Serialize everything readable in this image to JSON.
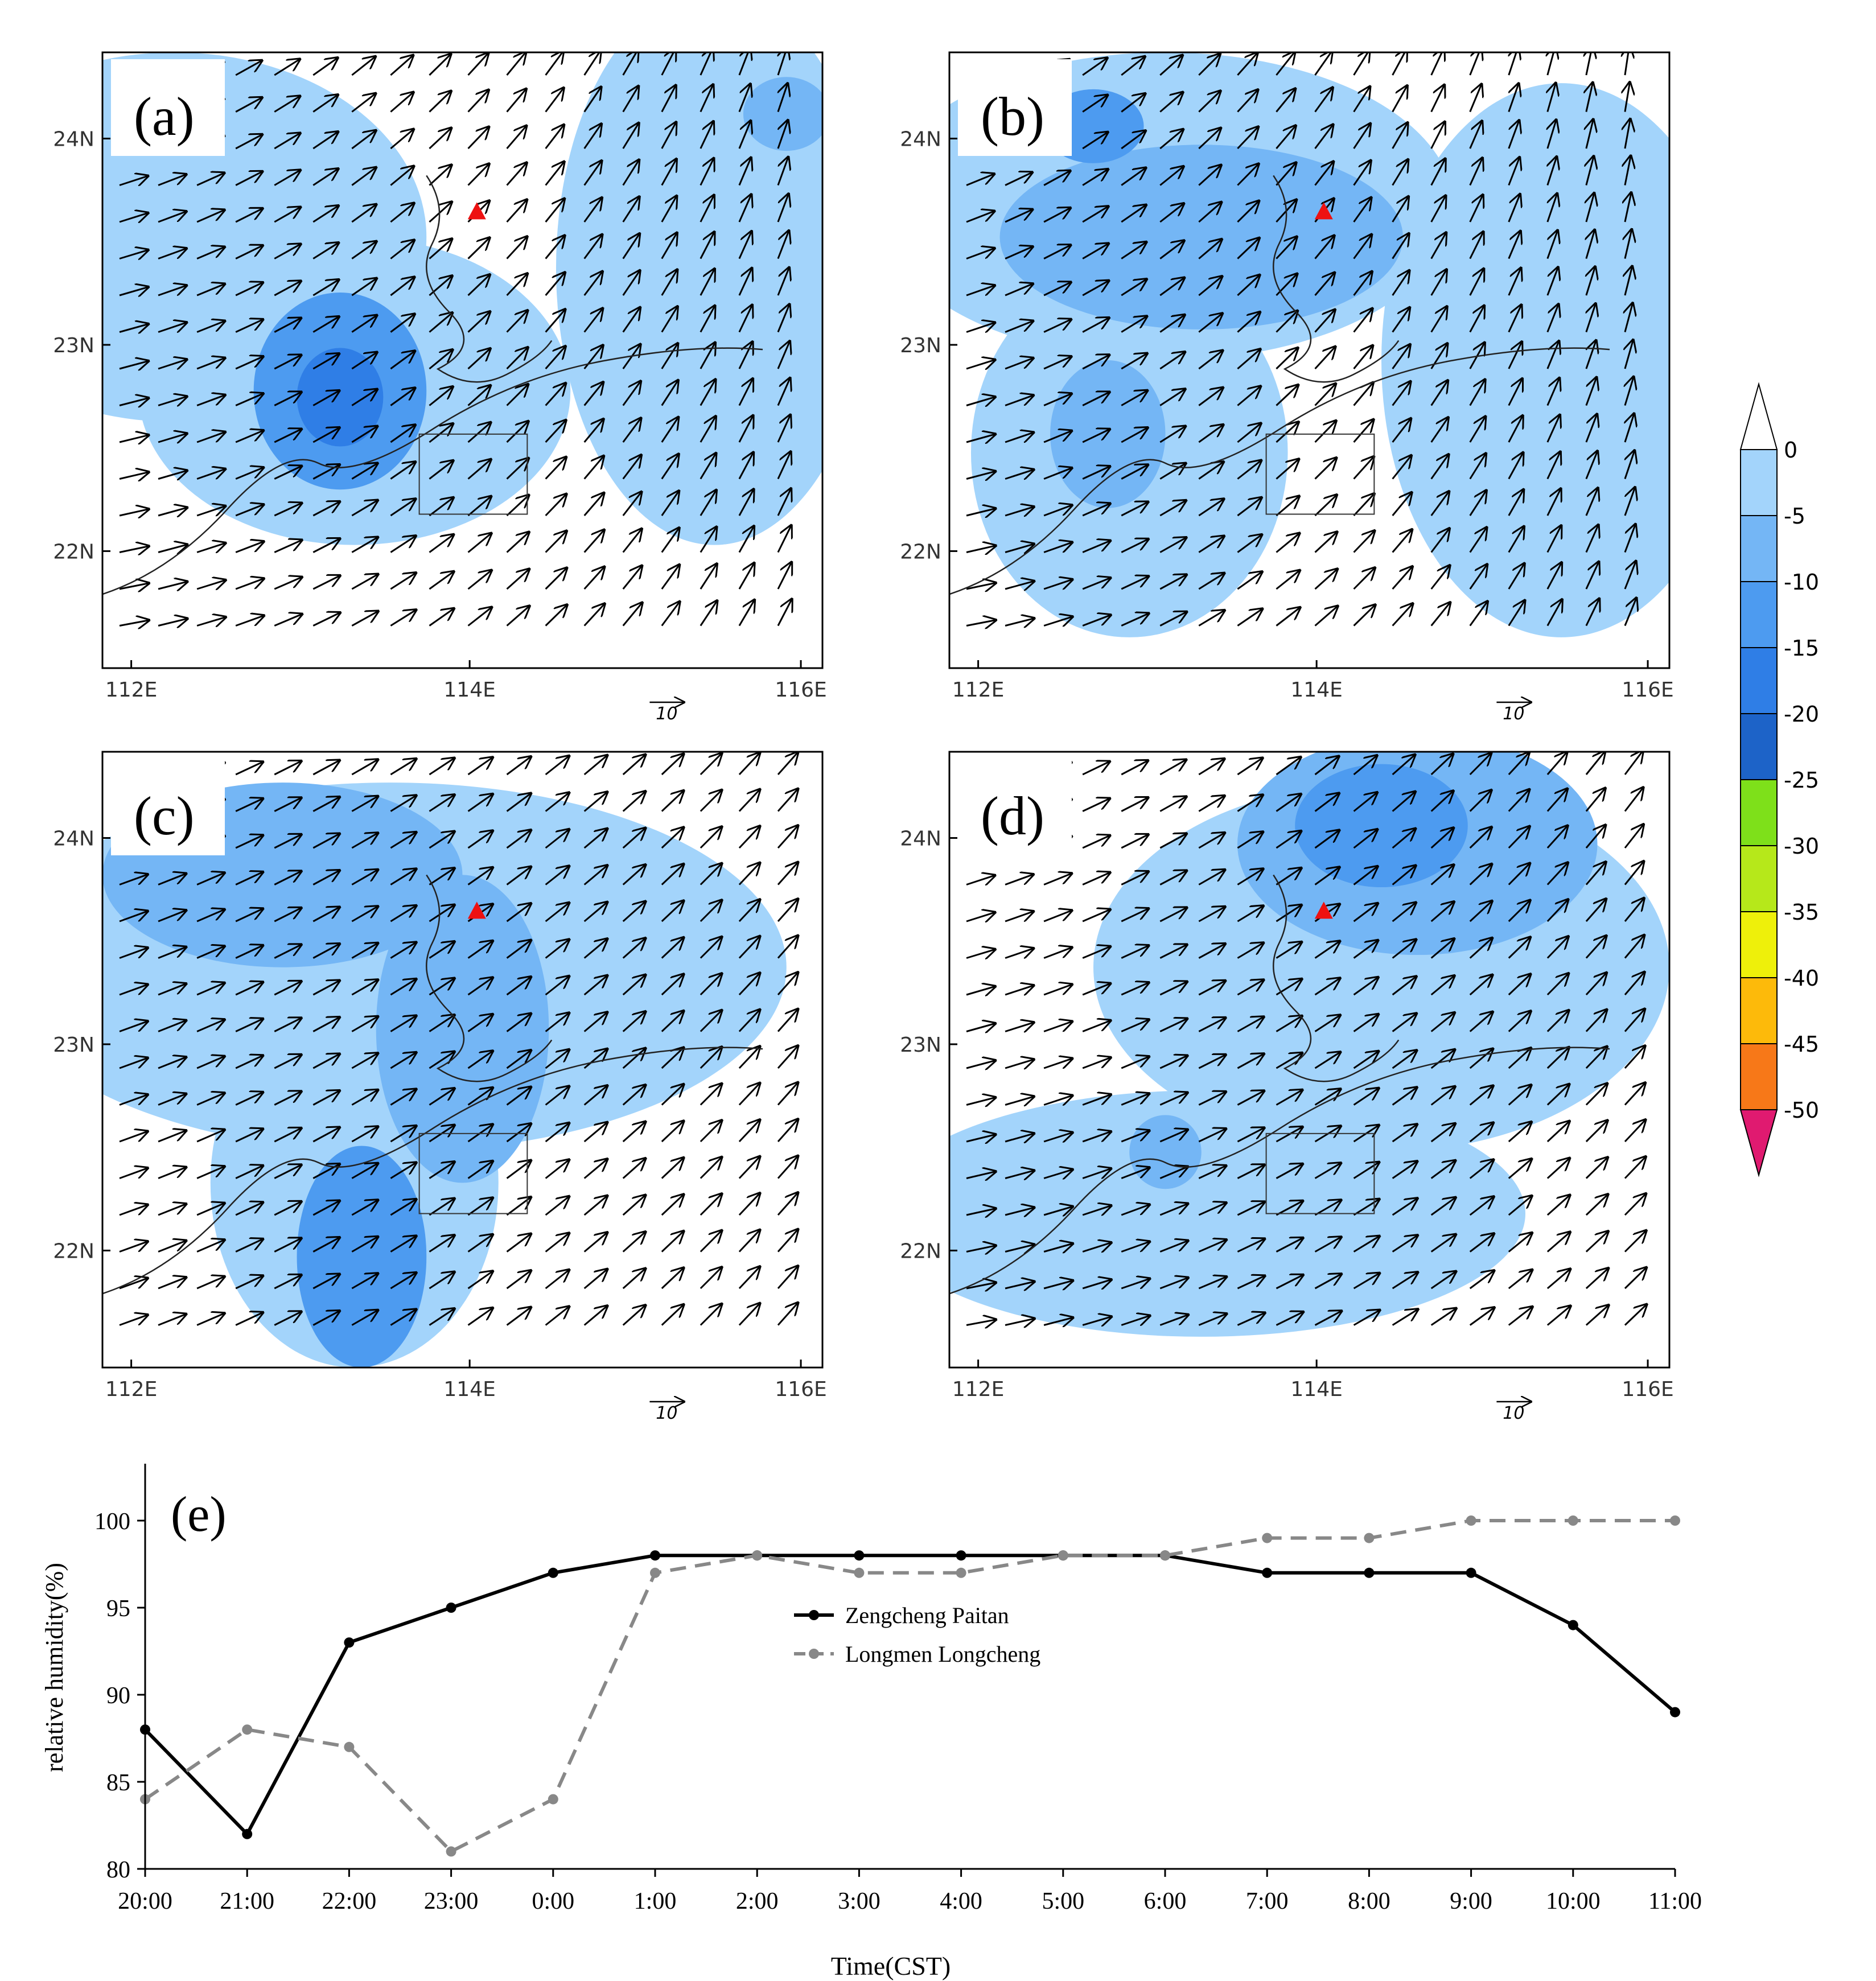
{
  "maps": [
    {
      "label": "(a)",
      "xticks": [
        "112E",
        "114E",
        "116E"
      ],
      "yticks": [
        "24N",
        "23N",
        "22N"
      ],
      "ref_vector": "10"
    },
    {
      "label": "(b)",
      "xticks": [
        "112E",
        "114E",
        "116E"
      ],
      "yticks": [
        "24N",
        "23N",
        "22N"
      ],
      "ref_vector": "10"
    },
    {
      "label": "(c)",
      "xticks": [
        "112E",
        "114E",
        "116E"
      ],
      "yticks": [
        "24N",
        "23N",
        "22N"
      ],
      "ref_vector": "10"
    },
    {
      "label": "(d)",
      "xticks": [
        "112E",
        "114E",
        "116E"
      ],
      "yticks": [
        "24N",
        "23N",
        "22N"
      ],
      "ref_vector": "10"
    }
  ],
  "colorbar": {
    "ticks": [
      "0",
      "-5",
      "-10",
      "-15",
      "-20",
      "-25",
      "-30",
      "-35",
      "-40",
      "-45",
      "-50"
    ],
    "colors": [
      "#a3d4fb",
      "#74b6f5",
      "#4d9bf0",
      "#2f7ee6",
      "#1d63c8",
      "#7ee01a",
      "#b6e81a",
      "#eef00a",
      "#fdba0a",
      "#f77818",
      "#f0303a",
      "#e01a70"
    ]
  },
  "chart_data": {
    "type": "line",
    "label": "(e)",
    "categories": [
      "20:00",
      "21:00",
      "22:00",
      "23:00",
      "0:00",
      "1:00",
      "2:00",
      "3:00",
      "4:00",
      "5:00",
      "6:00",
      "7:00",
      "8:00",
      "9:00",
      "10:00",
      "11:00"
    ],
    "series": [
      {
        "name": "Zengcheng Paitan",
        "values": [
          88,
          82,
          93,
          95,
          97,
          98,
          98,
          98,
          98,
          98,
          98,
          97,
          97,
          97,
          94,
          89
        ],
        "color": "#000000",
        "dash": false
      },
      {
        "name": "Longmen Longcheng",
        "values": [
          84,
          88,
          87,
          81,
          84,
          97,
          98,
          97,
          97,
          98,
          98,
          99,
          99,
          100,
          100,
          100
        ],
        "color": "#888888",
        "dash": true
      }
    ],
    "xlabel": "Time(CST)",
    "ylabel": "relative humidity(%)",
    "ylim": [
      80,
      100
    ],
    "yticks": [
      80,
      85,
      90,
      95,
      100
    ],
    "legend": "center"
  }
}
